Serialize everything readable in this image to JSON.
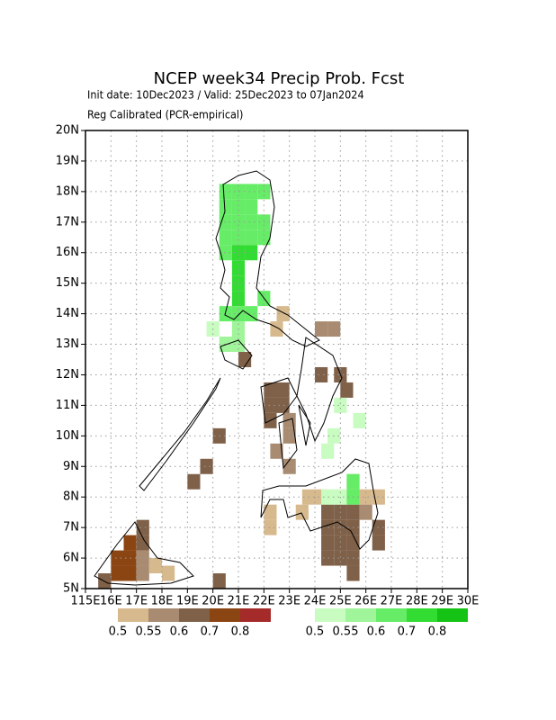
{
  "chart_data": {
    "type": "grid-map",
    "title": "NCEP week34 Precip Prob. Fcst",
    "subtitle": "Init date: 10Dec2023 / Valid: 25Dec2023 to 07Jan2024",
    "note": "Reg Calibrated (PCR-empirical)",
    "xlim": [
      115,
      130
    ],
    "ylim": [
      5,
      20
    ],
    "grid": true,
    "xticks": [
      {
        "value": 115,
        "label": "115E"
      },
      {
        "value": 116,
        "label": "16E"
      },
      {
        "value": 117,
        "label": "17E"
      },
      {
        "value": 118,
        "label": "18E"
      },
      {
        "value": 119,
        "label": "19E"
      },
      {
        "value": 120,
        "label": "20E"
      },
      {
        "value": 121,
        "label": "21E"
      },
      {
        "value": 122,
        "label": "22E"
      },
      {
        "value": 123,
        "label": "23E"
      },
      {
        "value": 124,
        "label": "24E"
      },
      {
        "value": 125,
        "label": "25E"
      },
      {
        "value": 126,
        "label": "26E"
      },
      {
        "value": 127,
        "label": "27E"
      },
      {
        "value": 128,
        "label": "28E"
      },
      {
        "value": 129,
        "label": "29E"
      },
      {
        "value": 130,
        "label": "30E"
      }
    ],
    "yticks": [
      {
        "value": 5,
        "label": "5N"
      },
      {
        "value": 6,
        "label": "6N"
      },
      {
        "value": 7,
        "label": "7N"
      },
      {
        "value": 8,
        "label": "8N"
      },
      {
        "value": 9,
        "label": "9N"
      },
      {
        "value": 10,
        "label": "10N"
      },
      {
        "value": 11,
        "label": "11N"
      },
      {
        "value": 12,
        "label": "12N"
      },
      {
        "value": 13,
        "label": "13N"
      },
      {
        "value": 14,
        "label": "14N"
      },
      {
        "value": 15,
        "label": "15N"
      },
      {
        "value": 16,
        "label": "16N"
      },
      {
        "value": 17,
        "label": "17N"
      },
      {
        "value": 18,
        "label": "18N"
      },
      {
        "value": 19,
        "label": "19N"
      },
      {
        "value": 20,
        "label": "20N"
      }
    ],
    "dry_levels": [
      0.5,
      0.55,
      0.6,
      0.7,
      0.8
    ],
    "dry_colors": [
      "#d7b98e",
      "#a88b70",
      "#7f6048",
      "#8b4513",
      "#a52a2a"
    ],
    "wet_levels": [
      0.5,
      0.55,
      0.6,
      0.7,
      0.8
    ],
    "wet_colors": [
      "#c8fcc0",
      "#a0f49a",
      "#66ec66",
      "#32dc32",
      "#14c314"
    ],
    "wet_cells": [
      [
        120.5,
        18.0,
        0.6
      ],
      [
        121.0,
        18.0,
        0.6
      ],
      [
        121.5,
        18.0,
        0.6
      ],
      [
        122.0,
        18.0,
        0.6
      ],
      [
        120.5,
        17.5,
        0.6
      ],
      [
        121.0,
        17.5,
        0.6
      ],
      [
        121.5,
        17.5,
        0.6
      ],
      [
        120.5,
        17.0,
        0.6
      ],
      [
        121.0,
        17.0,
        0.6
      ],
      [
        121.5,
        17.0,
        0.6
      ],
      [
        122.0,
        17.0,
        0.6
      ],
      [
        120.5,
        16.5,
        0.6
      ],
      [
        121.0,
        16.5,
        0.6
      ],
      [
        121.5,
        16.5,
        0.6
      ],
      [
        122.0,
        16.5,
        0.6
      ],
      [
        120.5,
        16.0,
        0.6
      ],
      [
        121.0,
        16.0,
        0.7
      ],
      [
        121.5,
        16.0,
        0.7
      ],
      [
        121.0,
        15.5,
        0.7
      ],
      [
        121.0,
        15.0,
        0.7
      ],
      [
        121.0,
        14.5,
        0.7
      ],
      [
        122.0,
        14.5,
        0.6
      ],
      [
        120.5,
        14.0,
        0.6
      ],
      [
        121.0,
        14.0,
        0.6
      ],
      [
        121.5,
        14.0,
        0.6
      ],
      [
        120.0,
        13.5,
        0.5
      ],
      [
        121.0,
        13.5,
        0.55
      ],
      [
        120.5,
        13.0,
        0.55
      ],
      [
        121.0,
        13.0,
        0.55
      ],
      [
        125.0,
        11.0,
        0.5
      ],
      [
        125.75,
        10.5,
        0.5
      ],
      [
        124.75,
        10.0,
        0.5
      ],
      [
        124.5,
        9.5,
        0.5
      ],
      [
        125.5,
        8.5,
        0.6
      ],
      [
        124.5,
        8.0,
        0.5
      ],
      [
        125.0,
        8.0,
        0.5
      ],
      [
        125.5,
        8.0,
        0.6
      ]
    ],
    "dry_cells": [
      [
        122.5,
        13.5,
        0.5
      ],
      [
        122.75,
        14.0,
        0.5
      ],
      [
        124.25,
        13.5,
        0.55
      ],
      [
        124.75,
        13.5,
        0.55
      ],
      [
        121.25,
        12.5,
        0.6
      ],
      [
        124.25,
        12.0,
        0.6
      ],
      [
        125.0,
        12.0,
        0.6
      ],
      [
        125.25,
        11.5,
        0.6
      ],
      [
        122.25,
        11.5,
        0.6
      ],
      [
        122.75,
        11.5,
        0.6
      ],
      [
        122.25,
        11.0,
        0.6
      ],
      [
        122.75,
        11.0,
        0.6
      ],
      [
        122.25,
        10.5,
        0.6
      ],
      [
        123.0,
        10.5,
        0.55
      ],
      [
        123.0,
        10.0,
        0.55
      ],
      [
        122.5,
        9.5,
        0.55
      ],
      [
        123.0,
        9.0,
        0.55
      ],
      [
        120.25,
        10.0,
        0.6
      ],
      [
        119.75,
        9.0,
        0.6
      ],
      [
        119.25,
        8.5,
        0.6
      ],
      [
        123.75,
        8.0,
        0.5
      ],
      [
        124.25,
        8.0,
        0.5
      ],
      [
        126.0,
        8.0,
        0.5
      ],
      [
        126.5,
        8.0,
        0.5
      ],
      [
        125.5,
        8.5,
        0.5
      ],
      [
        123.5,
        7.5,
        0.5
      ],
      [
        122.25,
        7.0,
        0.5
      ],
      [
        122.25,
        7.5,
        0.5
      ],
      [
        124.5,
        7.5,
        0.6
      ],
      [
        125.0,
        7.5,
        0.6
      ],
      [
        125.5,
        7.5,
        0.6
      ],
      [
        126.0,
        7.5,
        0.55
      ],
      [
        124.5,
        7.0,
        0.6
      ],
      [
        125.0,
        7.0,
        0.6
      ],
      [
        125.5,
        7.0,
        0.6
      ],
      [
        126.5,
        7.0,
        0.6
      ],
      [
        124.5,
        6.5,
        0.6
      ],
      [
        125.0,
        6.5,
        0.6
      ],
      [
        125.5,
        6.5,
        0.6
      ],
      [
        126.5,
        6.5,
        0.6
      ],
      [
        124.5,
        6.0,
        0.6
      ],
      [
        125.0,
        6.0,
        0.6
      ],
      [
        125.5,
        6.0,
        0.6
      ],
      [
        125.5,
        5.5,
        0.6
      ],
      [
        116.25,
        6.0,
        0.7
      ],
      [
        116.25,
        5.5,
        0.7
      ],
      [
        116.75,
        6.5,
        0.7
      ],
      [
        116.75,
        6.0,
        0.7
      ],
      [
        116.75,
        5.5,
        0.7
      ],
      [
        117.25,
        7.0,
        0.6
      ],
      [
        117.25,
        6.5,
        0.6
      ],
      [
        117.25,
        6.0,
        0.55
      ],
      [
        117.25,
        5.5,
        0.55
      ],
      [
        115.75,
        5.25,
        0.6
      ],
      [
        117.75,
        5.75,
        0.5
      ],
      [
        118.25,
        5.5,
        0.5
      ],
      [
        120.25,
        5.25,
        0.6
      ]
    ]
  }
}
